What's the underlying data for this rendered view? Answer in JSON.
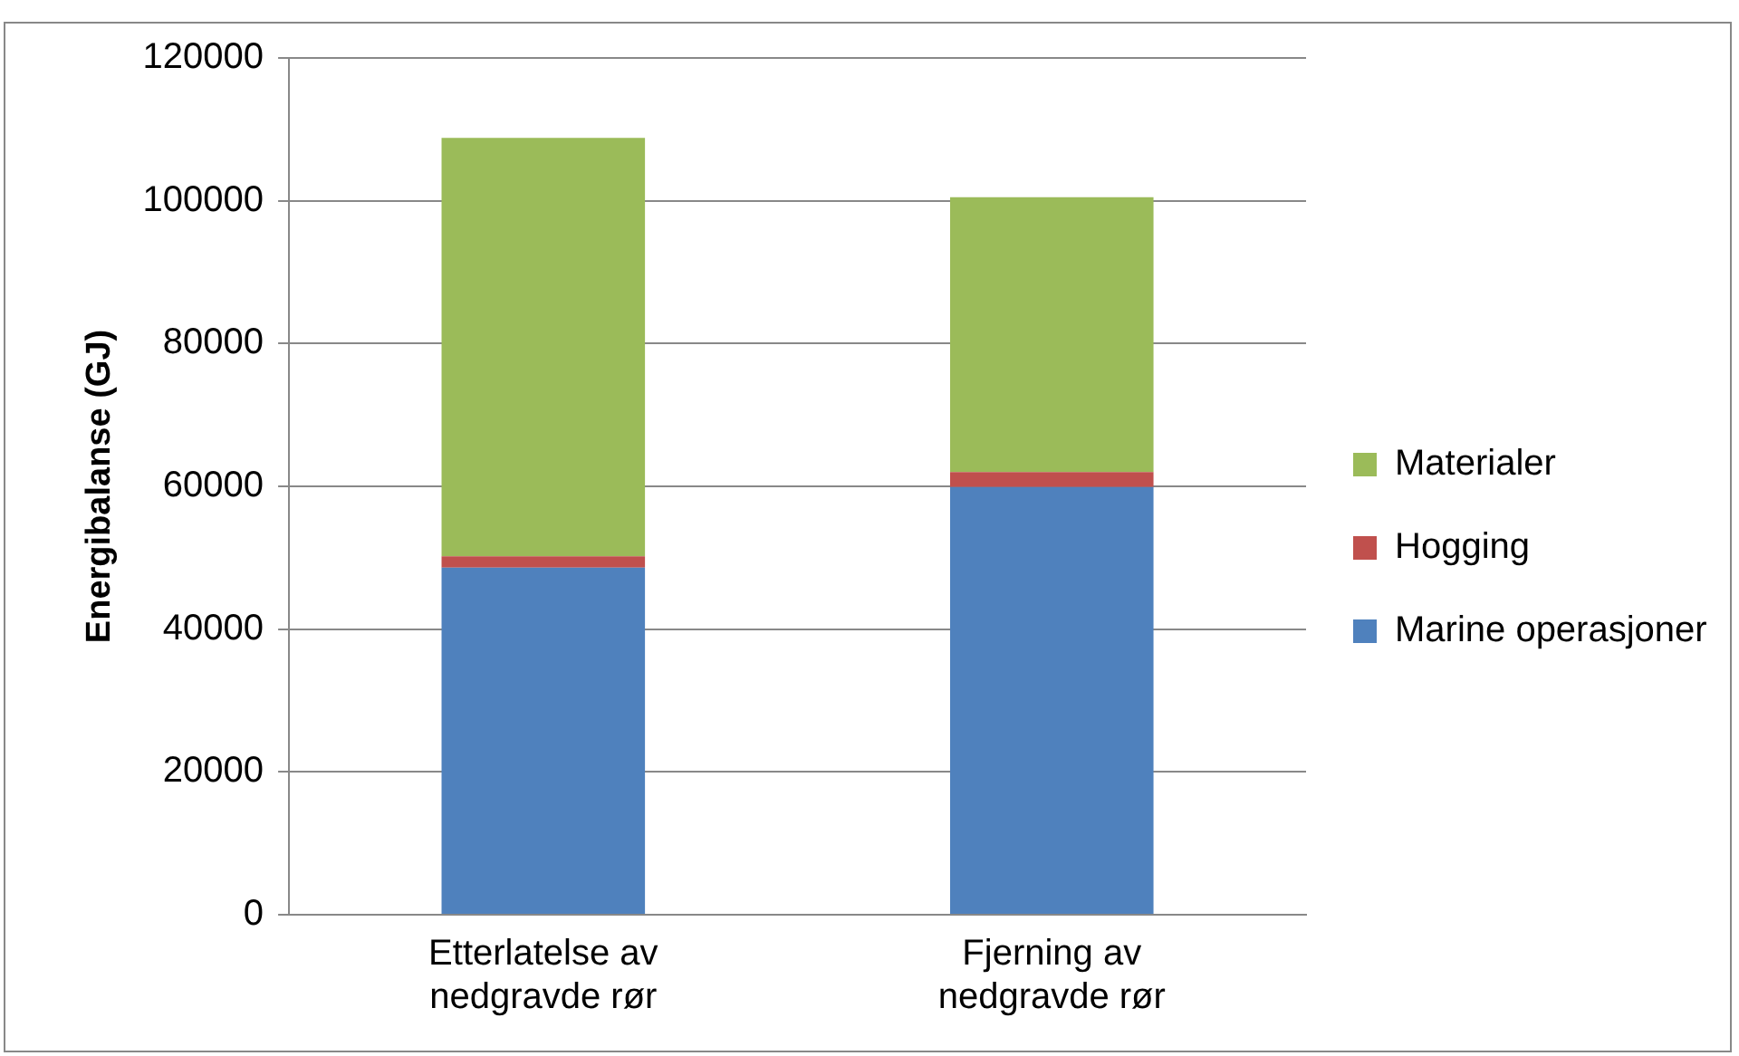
{
  "chart_data": {
    "type": "bar",
    "ylabel": "Energibalanse (GJ)",
    "categories": [
      "Etterlatelse av\nnedgravde rør",
      "Fjerning av\nnedgravde rør"
    ],
    "stacked": true,
    "series": [
      {
        "name": "Marine operasjoner",
        "color": "#4f81bd",
        "values": [
          48600,
          59900
        ]
      },
      {
        "name": "Hogging",
        "color": "#c0504d",
        "values": [
          1600,
          2100
        ]
      },
      {
        "name": "Materialer",
        "color": "#9bbb59",
        "values": [
          58600,
          38500
        ]
      }
    ],
    "ylim": [
      0,
      120000
    ],
    "yticks": [
      0,
      20000,
      40000,
      60000,
      80000,
      100000,
      120000
    ],
    "grid": "y",
    "legend": "right"
  }
}
